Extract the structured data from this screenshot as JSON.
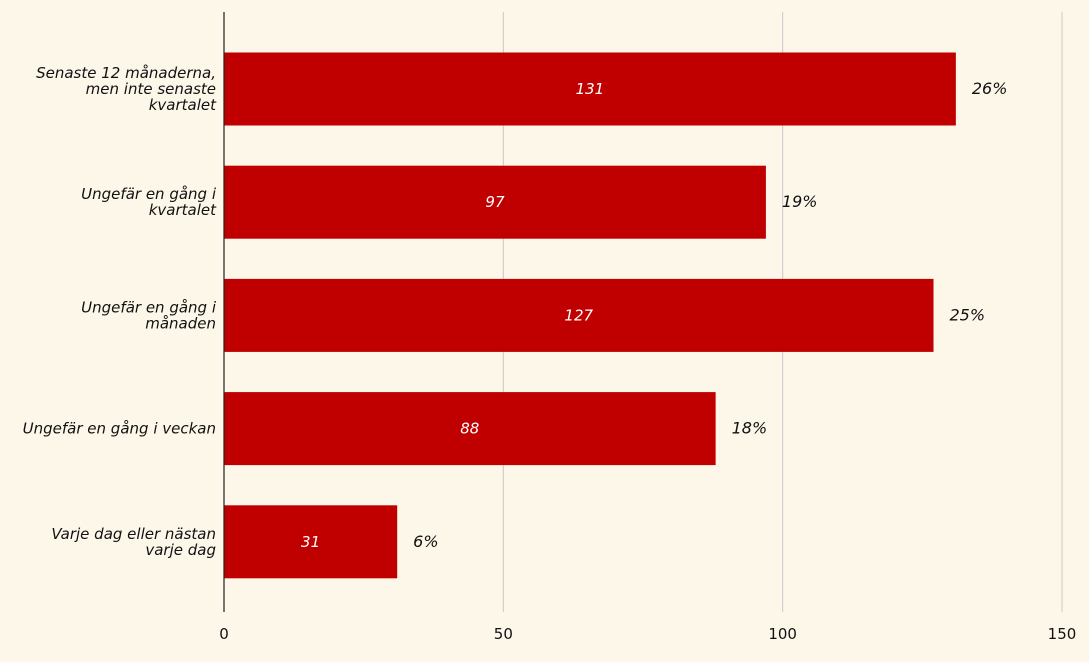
{
  "chart_data": {
    "type": "bar",
    "orientation": "horizontal",
    "categories": [
      [
        "Senaste 12 månaderna,",
        "men inte senaste",
        "kvartalet"
      ],
      [
        "Ungefär en gång i",
        "kvartalet"
      ],
      [
        "Ungefär en gång i",
        "månaden"
      ],
      [
        "Ungefär en gång i veckan"
      ],
      [
        "Varje dag eller nästan",
        "varje dag"
      ]
    ],
    "values": [
      131,
      97,
      127,
      88,
      31
    ],
    "percent_labels": [
      "26%",
      "19%",
      "25%",
      "18%",
      "6%"
    ],
    "xlim": [
      0,
      150
    ],
    "xticks": [
      0,
      50,
      100,
      150
    ],
    "grid": "vertical",
    "title": "",
    "xlabel": "",
    "ylabel": "",
    "bar_color": "#c00000",
    "background_color": "#fdf7e9",
    "grid_color": "#c8c8c8"
  }
}
